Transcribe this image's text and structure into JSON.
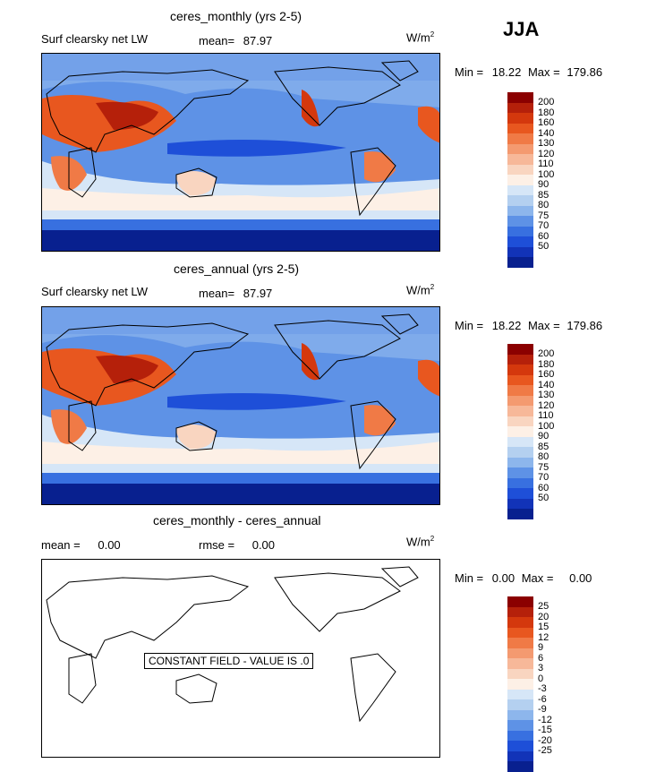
{
  "season": "JJA",
  "panels": [
    {
      "title": "ceres_monthly (yrs 2-5)",
      "field_label": "Surf clearsky net LW",
      "mean_label": "mean=",
      "mean_value": "87.97",
      "units": "W/m",
      "units_sup": "2",
      "minmax_label": "Min =",
      "min_value": "18.22",
      "max_label": "Max =",
      "max_value": "179.86"
    },
    {
      "title": "ceres_annual (yrs 2-5)",
      "field_label": "Surf clearsky net LW",
      "mean_label": "mean=",
      "mean_value": "87.97",
      "units": "W/m",
      "units_sup": "2",
      "minmax_label": "Min =",
      "min_value": "18.22",
      "max_label": "Max =",
      "max_value": "179.86"
    },
    {
      "title": "ceres_monthly - ceres_annual",
      "mean_label": "mean =",
      "mean_value": "0.00",
      "rmse_label": "rmse =",
      "rmse_value": "0.00",
      "units": "W/m",
      "units_sup": "2",
      "minmax_label": "Min =",
      "min_value": "0.00",
      "max_label": "Max =",
      "max_value": "0.00",
      "constant_note": "CONSTANT FIELD - VALUE IS .0"
    }
  ],
  "colorbar_main": {
    "labels": [
      "200",
      "180",
      "160",
      "140",
      "130",
      "120",
      "110",
      "100",
      "90",
      "85",
      "80",
      "75",
      "70",
      "60",
      "50"
    ],
    "colors": [
      "#8b0000",
      "#b5200a",
      "#d4380d",
      "#e8571f",
      "#f07a46",
      "#f49a70",
      "#f7b899",
      "#f9d5c0",
      "#fdf0e6",
      "#d6e6f7",
      "#b4d0f0",
      "#8db6ec",
      "#5e92e6",
      "#3870e0",
      "#1e4fd8",
      "#1233b8",
      "#08208f"
    ]
  },
  "colorbar_diff": {
    "labels": [
      "25",
      "20",
      "15",
      "12",
      "9",
      "6",
      "3",
      "0",
      "-3",
      "-6",
      "-9",
      "-12",
      "-15",
      "-20",
      "-25"
    ],
    "colors": [
      "#8b0000",
      "#b5200a",
      "#d4380d",
      "#e8571f",
      "#f07a46",
      "#f49a70",
      "#f7b899",
      "#f9d5c0",
      "#fdf0e6",
      "#d6e6f7",
      "#b4d0f0",
      "#8db6ec",
      "#5e92e6",
      "#3870e0",
      "#1e4fd8",
      "#1233b8",
      "#08208f"
    ]
  }
}
